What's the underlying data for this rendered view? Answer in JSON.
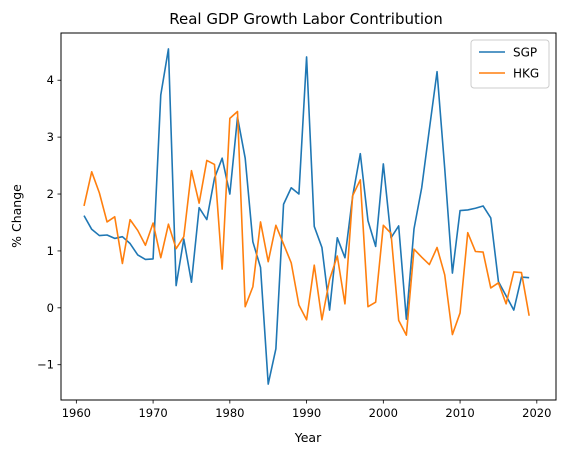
{
  "chart_data": {
    "type": "line",
    "title": "Real GDP Growth Labor Contribution",
    "xlabel": "Year",
    "ylabel": "% Change",
    "xlim": [
      1958,
      2022.5
    ],
    "ylim": [
      -1.62,
      4.83
    ],
    "xticks": [
      1960,
      1970,
      1980,
      1990,
      2000,
      2010,
      2020
    ],
    "yticks": [
      -1,
      0,
      1,
      2,
      3,
      4
    ],
    "grid": false,
    "legend": "top-right",
    "x": [
      1961,
      1962,
      1963,
      1964,
      1965,
      1966,
      1967,
      1968,
      1969,
      1970,
      1971,
      1972,
      1973,
      1974,
      1975,
      1976,
      1977,
      1978,
      1979,
      1980,
      1981,
      1982,
      1983,
      1984,
      1985,
      1986,
      1987,
      1988,
      1989,
      1990,
      1991,
      1992,
      1993,
      1994,
      1995,
      1996,
      1997,
      1998,
      1999,
      2000,
      2001,
      2002,
      2003,
      2004,
      2005,
      2006,
      2007,
      2008,
      2009,
      2010,
      2011,
      2012,
      2013,
      2014,
      2015,
      2016,
      2017,
      2018,
      2019
    ],
    "series": [
      {
        "name": "SGP",
        "color": "#1f77b4",
        "values": [
          1.62,
          1.38,
          1.27,
          1.28,
          1.22,
          1.25,
          1.13,
          0.93,
          0.85,
          0.86,
          3.74,
          4.55,
          0.39,
          1.21,
          0.45,
          1.76,
          1.55,
          2.28,
          2.63,
          2.0,
          3.35,
          2.63,
          1.16,
          0.71,
          -1.34,
          -0.72,
          1.82,
          2.11,
          2.0,
          4.41,
          1.43,
          1.06,
          -0.04,
          1.23,
          0.88,
          1.96,
          2.71,
          1.53,
          1.08,
          2.53,
          1.23,
          1.44,
          -0.2,
          1.39,
          2.11,
          3.14,
          4.15,
          2.45,
          0.61,
          1.71,
          1.72,
          1.75,
          1.79,
          1.58,
          0.46,
          0.21,
          -0.04,
          0.54,
          0.53
        ]
      },
      {
        "name": "HKG",
        "color": "#ff7f0e",
        "values": [
          1.79,
          2.39,
          2.02,
          1.51,
          1.6,
          0.78,
          1.55,
          1.36,
          1.1,
          1.49,
          0.88,
          1.47,
          1.04,
          1.25,
          2.41,
          1.84,
          2.59,
          2.52,
          0.68,
          3.33,
          3.45,
          0.02,
          0.37,
          1.51,
          0.81,
          1.45,
          1.12,
          0.79,
          0.05,
          -0.21,
          0.75,
          -0.21,
          0.5,
          0.91,
          0.07,
          1.97,
          2.25,
          0.02,
          0.1,
          1.45,
          1.31,
          -0.22,
          -0.48,
          1.03,
          0.89,
          0.76,
          1.06,
          0.58,
          -0.47,
          -0.09,
          1.32,
          0.99,
          0.98,
          0.35,
          0.44,
          0.07,
          0.63,
          0.62,
          -0.14
        ]
      }
    ]
  }
}
